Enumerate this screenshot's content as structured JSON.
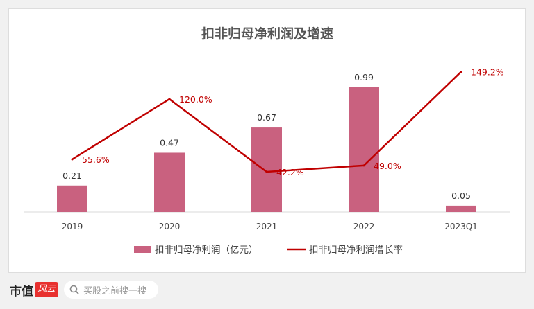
{
  "chart_data": {
    "type": "bar+line",
    "title": "扣非归母净利润及增速",
    "categories": [
      "2019",
      "2020",
      "2021",
      "2022",
      "2023Q1"
    ],
    "series": [
      {
        "name": "扣非归母净利润（亿元）",
        "type": "bar",
        "values": [
          0.21,
          0.47,
          0.67,
          0.99,
          0.05
        ],
        "labels": [
          "0.21",
          "0.47",
          "0.67",
          "0.99",
          "0.05"
        ],
        "color": "#c9617f"
      },
      {
        "name": "扣非归母净利润增长率",
        "type": "line",
        "values": [
          55.6,
          120.0,
          42.2,
          49.0,
          149.2
        ],
        "labels": [
          "55.6%",
          "120.0%",
          "42.2%",
          "49.0%",
          "149.2%"
        ],
        "color": "#c00000"
      }
    ],
    "legend": "bottom",
    "grid": false
  },
  "watermark": "市值风云",
  "footer": {
    "logo": "市值",
    "logo_badge": "风云",
    "search_placeholder": "买股之前搜一搜"
  }
}
